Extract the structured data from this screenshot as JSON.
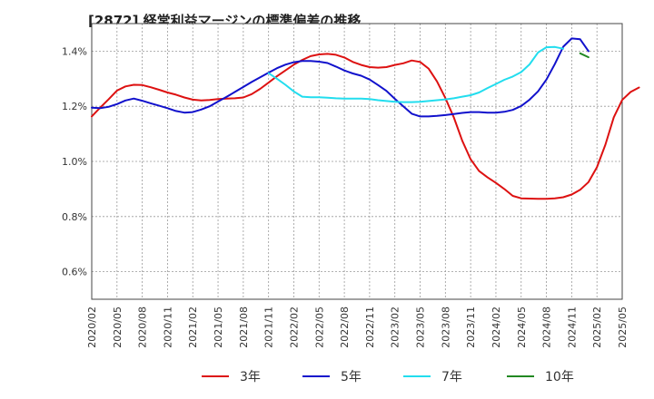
{
  "title": "[2872]  経常利益マージンの標準偏差の推移",
  "chart_data": {
    "type": "line",
    "title": "[2872]  経常利益マージンの標準偏差の推移",
    "xlabel": "",
    "ylabel": "",
    "x_ticks": [
      "2020/02",
      "2020/05",
      "2020/08",
      "2020/11",
      "2021/02",
      "2021/05",
      "2021/08",
      "2021/11",
      "2022/02",
      "2022/05",
      "2022/08",
      "2022/11",
      "2023/02",
      "2023/05",
      "2023/08",
      "2023/11",
      "2024/02",
      "2024/05",
      "2024/08",
      "2024/11",
      "2025/02",
      "2025/05"
    ],
    "y_ticks": [
      0.6,
      0.8,
      1.0,
      1.2,
      1.4
    ],
    "y_tick_labels": [
      "0.6%",
      "0.8%",
      "1.0%",
      "1.2%",
      "1.4%"
    ],
    "ylim": [
      0.5,
      1.5
    ],
    "grid": true,
    "legend_position": "bottom",
    "series": [
      {
        "name": "3年",
        "color": "#dd1111",
        "start": "2020/02",
        "values": [
          1.163,
          1.195,
          1.225,
          1.257,
          1.272,
          1.278,
          1.277,
          1.269,
          1.26,
          1.25,
          1.242,
          1.232,
          1.224,
          1.221,
          1.223,
          1.226,
          1.228,
          1.229,
          1.232,
          1.244,
          1.263,
          1.286,
          1.309,
          1.33,
          1.351,
          1.368,
          1.382,
          1.388,
          1.39,
          1.387,
          1.377,
          1.361,
          1.35,
          1.342,
          1.34,
          1.342,
          1.35,
          1.356,
          1.366,
          1.361,
          1.337,
          1.29,
          1.23,
          1.16,
          1.075,
          1.008,
          0.965,
          0.942,
          0.922,
          0.9,
          0.875,
          0.866,
          0.865,
          0.864,
          0.864,
          0.866,
          0.87,
          0.88,
          0.897,
          0.925,
          0.979,
          1.061,
          1.16,
          1.223,
          1.252,
          1.268
        ]
      },
      {
        "name": "5年",
        "color": "#1111cc",
        "start": "2020/02",
        "values": [
          1.195,
          1.193,
          1.198,
          1.208,
          1.221,
          1.228,
          1.22,
          1.211,
          1.202,
          1.193,
          1.183,
          1.177,
          1.179,
          1.188,
          1.2,
          1.217,
          1.234,
          1.252,
          1.27,
          1.288,
          1.305,
          1.322,
          1.338,
          1.351,
          1.36,
          1.364,
          1.364,
          1.362,
          1.357,
          1.344,
          1.33,
          1.319,
          1.311,
          1.297,
          1.277,
          1.256,
          1.227,
          1.2,
          1.173,
          1.163,
          1.163,
          1.165,
          1.168,
          1.172,
          1.176,
          1.179,
          1.179,
          1.177,
          1.177,
          1.18,
          1.187,
          1.201,
          1.224,
          1.254,
          1.297,
          1.353,
          1.416,
          1.446,
          1.443,
          1.4
        ]
      },
      {
        "name": "7年",
        "color": "#22ddee",
        "start": "2021/11",
        "values": [
          1.32,
          1.3,
          1.278,
          1.254,
          1.235,
          1.233,
          1.233,
          1.231,
          1.229,
          1.228,
          1.228,
          1.228,
          1.226,
          1.222,
          1.219,
          1.216,
          1.215,
          1.215,
          1.216,
          1.219,
          1.222,
          1.225,
          1.229,
          1.235,
          1.24,
          1.25,
          1.266,
          1.281,
          1.296,
          1.308,
          1.324,
          1.352,
          1.395,
          1.414,
          1.415,
          1.409
        ]
      },
      {
        "name": "10年",
        "color": "#228822",
        "start": "2024/12",
        "values": [
          1.392,
          1.378
        ]
      }
    ]
  }
}
